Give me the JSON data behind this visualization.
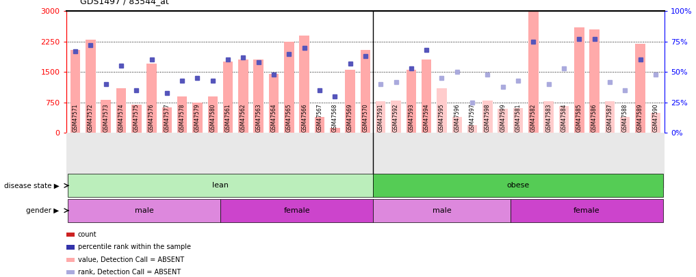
{
  "title": "GDS1497 / 83544_at",
  "samples": [
    "GSM47571",
    "GSM47572",
    "GSM47573",
    "GSM47574",
    "GSM47575",
    "GSM47576",
    "GSM47577",
    "GSM47578",
    "GSM47579",
    "GSM47580",
    "GSM47561",
    "GSM47562",
    "GSM47563",
    "GSM47564",
    "GSM47565",
    "GSM47566",
    "GSM47567",
    "GSM47568",
    "GSM47569",
    "GSM47570",
    "GSM47591",
    "GSM47592",
    "GSM47593",
    "GSM47594",
    "GSM47595",
    "GSM47596",
    "GSM47597",
    "GSM47598",
    "GSM47599",
    "GSM47581",
    "GSM47582",
    "GSM47583",
    "GSM47584",
    "GSM47585",
    "GSM47586",
    "GSM47587",
    "GSM47588",
    "GSM47589",
    "GSM47590"
  ],
  "bar_values": [
    2050,
    2300,
    820,
    1100,
    700,
    1700,
    630,
    900,
    750,
    900,
    1750,
    1800,
    1800,
    1450,
    2250,
    2400,
    400,
    130,
    1550,
    2050,
    780,
    800,
    1550,
    1800,
    1100,
    390,
    200,
    800,
    600,
    620,
    3000,
    780,
    660,
    2600,
    2550,
    780,
    400,
    2200,
    500
  ],
  "pct_values": [
    67,
    72,
    40,
    55,
    35,
    60,
    33,
    43,
    45,
    43,
    60,
    62,
    58,
    48,
    65,
    70,
    35,
    30,
    57,
    63,
    40,
    42,
    53,
    68,
    45,
    50,
    25,
    48,
    38,
    43,
    75,
    40,
    53,
    77,
    77,
    42,
    35,
    60,
    48
  ],
  "absent_flags": [
    false,
    false,
    false,
    false,
    false,
    false,
    false,
    false,
    false,
    false,
    false,
    false,
    false,
    false,
    false,
    false,
    false,
    false,
    false,
    false,
    true,
    true,
    false,
    false,
    true,
    true,
    true,
    true,
    true,
    true,
    false,
    true,
    true,
    false,
    false,
    true,
    true,
    false,
    true
  ],
  "bar_color_present": "#ffaaaa",
  "bar_color_absent": "#ffcccc",
  "dot_color_present": "#5555bb",
  "dot_color_absent": "#aaaadd",
  "lean_color": "#bbeebb",
  "obese_color": "#55cc55",
  "male_color": "#dd88dd",
  "female_color": "#cc44cc",
  "ylim_left": [
    0,
    3000
  ],
  "ylim_right": [
    0,
    100
  ],
  "yticks_left": [
    0,
    750,
    1500,
    2250,
    3000
  ],
  "yticks_right": [
    0,
    25,
    50,
    75,
    100
  ],
  "disease_groups": [
    {
      "label": "lean",
      "start": 0,
      "end": 19
    },
    {
      "label": "obese",
      "start": 20,
      "end": 38
    }
  ],
  "gender_groups": [
    {
      "label": "male",
      "start": 0,
      "end": 9,
      "color": "#dd88dd"
    },
    {
      "label": "female",
      "start": 10,
      "end": 19,
      "color": "#cc44cc"
    },
    {
      "label": "male",
      "start": 20,
      "end": 28,
      "color": "#dd88dd"
    },
    {
      "label": "female",
      "start": 29,
      "end": 38,
      "color": "#cc44cc"
    }
  ],
  "legend_items": [
    {
      "label": "count",
      "color": "#cc2222"
    },
    {
      "label": "percentile rank within the sample",
      "color": "#3333aa"
    },
    {
      "label": "value, Detection Call = ABSENT",
      "color": "#ffaaaa"
    },
    {
      "label": "rank, Detection Call = ABSENT",
      "color": "#aaaadd"
    }
  ]
}
